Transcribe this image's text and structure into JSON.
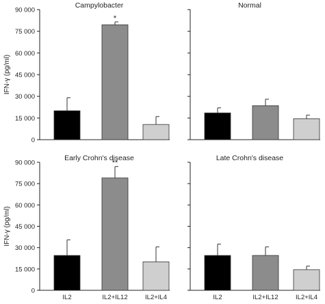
{
  "chart_data": {
    "type": "bar",
    "ylabel": "IFN-γ (pg/ml)",
    "ylim": [
      0,
      90000
    ],
    "yticks": [
      0,
      15000,
      30000,
      45000,
      60000,
      75000,
      90000
    ],
    "ytick_labels": [
      "0",
      "15 000",
      "30 000",
      "45 000",
      "60 000",
      "75 000",
      "90 000"
    ],
    "categories": [
      "IL2",
      "IL2+IL12",
      "IL2+IL4"
    ],
    "bar_colors": [
      "#000000",
      "#8c8c8c",
      "#cfcfcf"
    ],
    "grid": false,
    "panels": [
      {
        "title": "Campylobacter",
        "values": [
          20000,
          79500,
          10500
        ],
        "errors": [
          9000,
          2000,
          5500
        ],
        "annotations": [
          "",
          "*",
          ""
        ]
      },
      {
        "title": "Normal",
        "values": [
          18500,
          23500,
          14500
        ],
        "errors": [
          3500,
          4500,
          2500
        ],
        "annotations": [
          "",
          "",
          ""
        ]
      },
      {
        "title": "Early Crohn's disease",
        "values": [
          24500,
          79000,
          20000
        ],
        "errors": [
          11000,
          8000,
          10500
        ],
        "annotations": [
          "",
          "**",
          ""
        ]
      },
      {
        "title": "Late Crohn's disease",
        "values": [
          24500,
          24500,
          14500
        ],
        "errors": [
          8000,
          6000,
          2500
        ],
        "annotations": [
          "",
          "",
          ""
        ]
      }
    ]
  }
}
